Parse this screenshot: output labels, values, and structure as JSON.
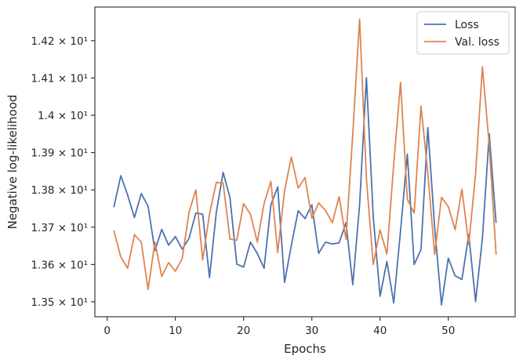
{
  "chart_data": {
    "type": "line",
    "xlabel": "Epochs",
    "ylabel": "Negative log-likelihood",
    "xlim": [
      -1.8,
      59.8
    ],
    "ylim": [
      13.46,
      14.29
    ],
    "x_ticks": [
      0,
      10,
      20,
      30,
      40,
      50
    ],
    "y_ticks": [
      {
        "value": 13.5,
        "label": "1.35 × 10¹"
      },
      {
        "value": 13.6,
        "label": "1.36 × 10¹"
      },
      {
        "value": 13.7,
        "label": "1.37 × 10¹"
      },
      {
        "value": 13.8,
        "label": "1.38 × 10¹"
      },
      {
        "value": 13.9,
        "label": "1.39 × 10¹"
      },
      {
        "value": 14.0,
        "label": "1.4 × 10¹"
      },
      {
        "value": 14.1,
        "label": "1.41 × 10¹"
      },
      {
        "value": 14.2,
        "label": "1.42 × 10¹"
      }
    ],
    "grid": false,
    "legend_position": "top-right",
    "x": [
      1,
      2,
      3,
      4,
      5,
      6,
      7,
      8,
      9,
      10,
      11,
      12,
      13,
      14,
      15,
      16,
      17,
      18,
      19,
      20,
      21,
      22,
      23,
      24,
      25,
      26,
      27,
      28,
      29,
      30,
      31,
      32,
      33,
      34,
      35,
      36,
      37,
      38,
      39,
      40,
      41,
      42,
      43,
      44,
      45,
      46,
      47,
      48,
      49,
      50,
      51,
      52,
      53,
      54,
      55,
      56,
      57
    ],
    "series": [
      {
        "name": "Loss",
        "color": "#4c72b0",
        "values": [
          13.755,
          13.838,
          13.786,
          13.726,
          13.79,
          13.756,
          13.637,
          13.694,
          13.652,
          13.675,
          13.641,
          13.67,
          13.738,
          13.735,
          13.565,
          13.74,
          13.847,
          13.779,
          13.601,
          13.593,
          13.66,
          13.63,
          13.59,
          13.76,
          13.808,
          13.552,
          13.652,
          13.744,
          13.723,
          13.76,
          13.63,
          13.66,
          13.655,
          13.658,
          13.712,
          13.546,
          13.76,
          14.101,
          13.728,
          13.515,
          13.608,
          13.497,
          13.69,
          13.896,
          13.6,
          13.64,
          13.967,
          13.7,
          13.492,
          13.617,
          13.57,
          13.56,
          13.68,
          13.501,
          13.67,
          13.95,
          13.713
        ]
      },
      {
        "name": "Val. loss",
        "color": "#dd8452",
        "values": [
          13.69,
          13.62,
          13.59,
          13.68,
          13.66,
          13.533,
          13.66,
          13.568,
          13.605,
          13.582,
          13.616,
          13.74,
          13.8,
          13.612,
          13.735,
          13.82,
          13.818,
          13.668,
          13.665,
          13.763,
          13.735,
          13.66,
          13.763,
          13.823,
          13.632,
          13.798,
          13.888,
          13.805,
          13.833,
          13.724,
          13.765,
          13.745,
          13.712,
          13.782,
          13.668,
          13.95,
          14.258,
          13.83,
          13.6,
          13.693,
          13.628,
          13.868,
          14.088,
          13.775,
          13.738,
          14.025,
          13.845,
          13.627,
          13.78,
          13.755,
          13.693,
          13.802,
          13.654,
          13.843,
          14.13,
          13.92,
          13.628
        ]
      }
    ]
  }
}
